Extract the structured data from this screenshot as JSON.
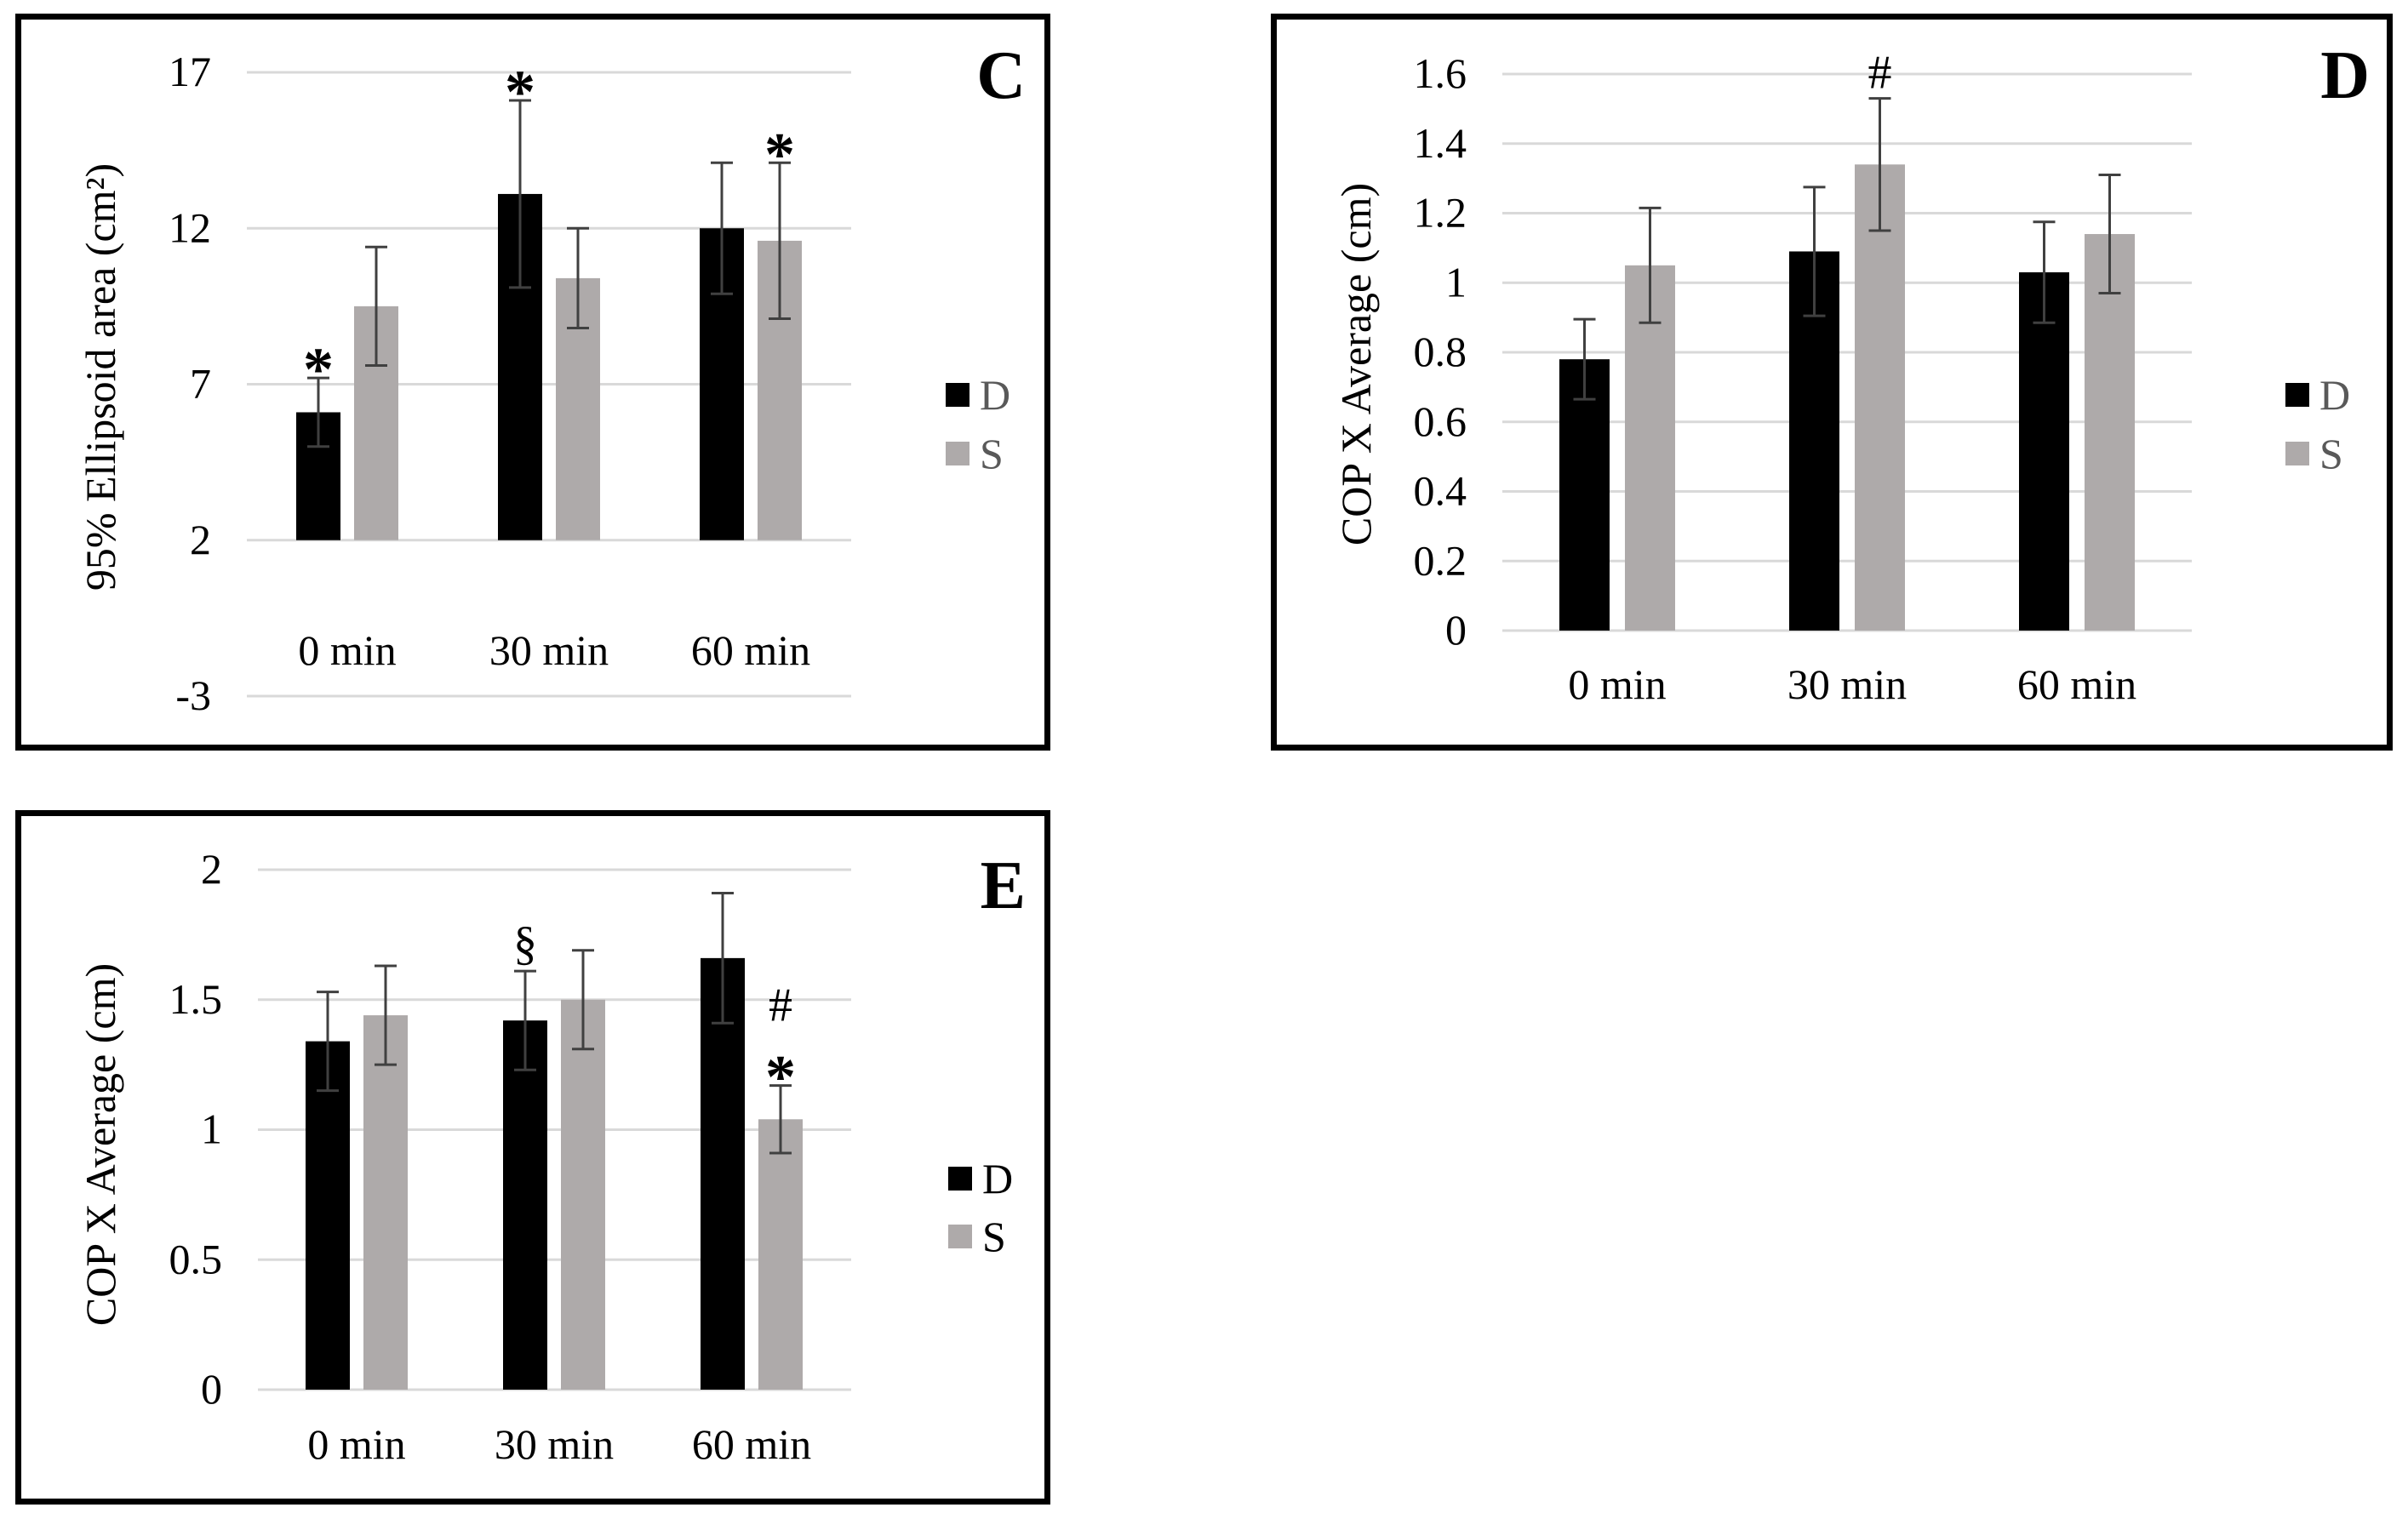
{
  "colors": {
    "D": "#000000",
    "S": "#aeaaaa",
    "grid": "#d9d9d9",
    "error": "#404040"
  },
  "charts": [
    {
      "id": "C",
      "panel_letter": "C",
      "chart_data": {
        "type": "bar",
        "title": "",
        "xlabel": "",
        "ylabel": "95% Ellipsoid area (cm²)",
        "categories": [
          "0 min",
          "30 min",
          "60 min"
        ],
        "ylim": [
          -3,
          17
        ],
        "yticks": [
          17,
          12,
          7,
          2,
          -3
        ],
        "ytick_labels": [
          "17",
          "12",
          "7",
          "2",
          "-3"
        ],
        "series": [
          {
            "name": "D",
            "values": [
              6.1,
              13.1,
              12.0
            ],
            "errors": [
              1.1,
              3.0,
              2.1
            ]
          },
          {
            "name": "S",
            "values": [
              9.5,
              10.4,
              11.6
            ],
            "errors": [
              1.9,
              1.6,
              2.5
            ]
          }
        ],
        "annotations": [
          {
            "text": "*",
            "category": 0,
            "series": 0
          },
          {
            "text": "*",
            "category": 1,
            "series": 0
          },
          {
            "text": "*",
            "category": 2,
            "series": 1
          }
        ],
        "legend": {
          "position": "right",
          "entries": [
            "D",
            "S"
          ]
        },
        "grid": true
      }
    },
    {
      "id": "D",
      "panel_letter": "D",
      "chart_data": {
        "type": "bar",
        "title": "",
        "xlabel": "",
        "ylabel": "COP X Average (cm)",
        "categories": [
          "0 min",
          "30 min",
          "60 min"
        ],
        "ylim": [
          0,
          1.6
        ],
        "yticks": [
          1.6,
          1.4,
          1.2,
          1.0,
          0.8,
          0.6,
          0.4,
          0.2,
          0
        ],
        "ytick_labels": [
          "1.6",
          "1.4",
          "1.2",
          "1",
          "0.8",
          "0.6",
          "0.4",
          "0.2",
          "0"
        ],
        "series": [
          {
            "name": "D",
            "values": [
              0.78,
              1.09,
              1.03
            ],
            "errors": [
              0.115,
              0.185,
              0.145
            ]
          },
          {
            "name": "S",
            "values": [
              1.05,
              1.34,
              1.14
            ],
            "errors": [
              0.165,
              0.19,
              0.17
            ]
          }
        ],
        "annotations": [
          {
            "text": "#",
            "category": 1,
            "series": 1
          }
        ],
        "legend": {
          "position": "right",
          "entries": [
            "D",
            "S"
          ]
        },
        "grid": true
      }
    },
    {
      "id": "E",
      "panel_letter": "E",
      "chart_data": {
        "type": "bar",
        "title": "",
        "xlabel": "",
        "ylabel": "COP X Average (cm)",
        "categories": [
          "0 min",
          "30 min",
          "60 min"
        ],
        "ylim": [
          0,
          2
        ],
        "yticks": [
          2,
          1.5,
          1,
          0.5,
          0
        ],
        "ytick_labels": [
          "2",
          "1.5",
          "1",
          "0.5",
          "0"
        ],
        "series": [
          {
            "name": "D",
            "values": [
              1.34,
              1.42,
              1.66
            ],
            "errors": [
              0.19,
              0.19,
              0.25
            ]
          },
          {
            "name": "S",
            "values": [
              1.44,
              1.5,
              1.04
            ],
            "errors": [
              0.19,
              0.19,
              0.13
            ]
          }
        ],
        "annotations": [
          {
            "text": "§",
            "category": 1,
            "series": 0
          },
          {
            "text": "#",
            "category": 2,
            "series": 1
          },
          {
            "text": "*",
            "category": 2,
            "series": 1
          }
        ],
        "legend": {
          "position": "right",
          "entries": [
            "D",
            "S"
          ]
        },
        "grid": true
      }
    }
  ]
}
